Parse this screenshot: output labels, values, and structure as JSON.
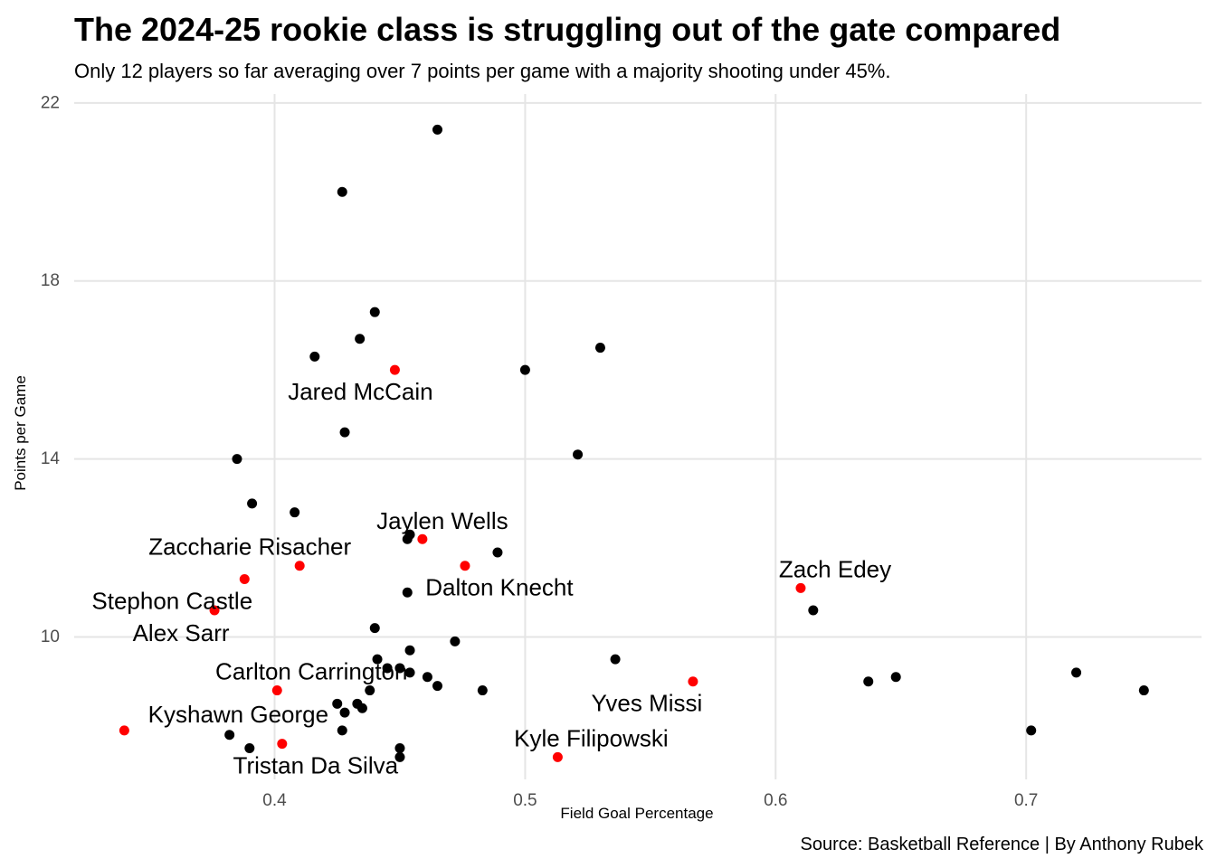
{
  "title": "The 2024-25 rookie class is struggling out of the gate compared",
  "subtitle": "Only 12 players so far averaging over 7 points per game with a majority shooting under 45%.",
  "caption": "Source: Basketball Reference | By Anthony Rubek",
  "colors": {
    "highlight": "#ff0000",
    "default": "#000000",
    "grid": "#e5e5e5",
    "background": "#ffffff"
  },
  "chart_data": {
    "type": "scatter",
    "xlabel": "Field Goal Percentage",
    "ylabel": "Points per Game",
    "xlim": [
      0.32,
      0.77
    ],
    "ylim": [
      6.8,
      22.2
    ],
    "x_ticks": [
      0.4,
      0.5,
      0.6,
      0.7
    ],
    "x_tick_labels": [
      "0.4",
      "0.5",
      "0.6",
      "0.7"
    ],
    "y_ticks": [
      10,
      14,
      18,
      22
    ],
    "y_tick_labels": [
      "10",
      "14",
      "18",
      "22"
    ],
    "grid": true,
    "legend": "none",
    "points": [
      {
        "x": 0.465,
        "y": 21.4
      },
      {
        "x": 0.427,
        "y": 20.0
      },
      {
        "x": 0.44,
        "y": 17.3
      },
      {
        "x": 0.434,
        "y": 16.7
      },
      {
        "x": 0.53,
        "y": 16.5
      },
      {
        "x": 0.416,
        "y": 16.3
      },
      {
        "x": 0.5,
        "y": 16.0
      },
      {
        "x": 0.428,
        "y": 14.6
      },
      {
        "x": 0.521,
        "y": 14.1
      },
      {
        "x": 0.385,
        "y": 14.0
      },
      {
        "x": 0.391,
        "y": 13.0
      },
      {
        "x": 0.408,
        "y": 12.8
      },
      {
        "x": 0.454,
        "y": 12.3
      },
      {
        "x": 0.453,
        "y": 12.2
      },
      {
        "x": 0.489,
        "y": 11.9
      },
      {
        "x": 0.453,
        "y": 11.0
      },
      {
        "x": 0.615,
        "y": 10.6
      },
      {
        "x": 0.44,
        "y": 10.2
      },
      {
        "x": 0.472,
        "y": 9.9
      },
      {
        "x": 0.454,
        "y": 9.7
      },
      {
        "x": 0.536,
        "y": 9.5
      },
      {
        "x": 0.441,
        "y": 9.5
      },
      {
        "x": 0.45,
        "y": 9.3
      },
      {
        "x": 0.445,
        "y": 9.3
      },
      {
        "x": 0.454,
        "y": 9.2
      },
      {
        "x": 0.72,
        "y": 9.2
      },
      {
        "x": 0.461,
        "y": 9.1
      },
      {
        "x": 0.648,
        "y": 9.1
      },
      {
        "x": 0.637,
        "y": 9.0
      },
      {
        "x": 0.465,
        "y": 8.9
      },
      {
        "x": 0.438,
        "y": 8.8
      },
      {
        "x": 0.483,
        "y": 8.8
      },
      {
        "x": 0.747,
        "y": 8.8
      },
      {
        "x": 0.425,
        "y": 8.5
      },
      {
        "x": 0.433,
        "y": 8.5
      },
      {
        "x": 0.435,
        "y": 8.4
      },
      {
        "x": 0.428,
        "y": 8.3
      },
      {
        "x": 0.427,
        "y": 7.9
      },
      {
        "x": 0.702,
        "y": 7.9
      },
      {
        "x": 0.382,
        "y": 7.8
      },
      {
        "x": 0.39,
        "y": 7.5
      },
      {
        "x": 0.45,
        "y": 7.5
      },
      {
        "x": 0.45,
        "y": 7.3
      },
      {
        "x": 0.448,
        "y": 16.0,
        "label": "Jared McCain",
        "highlight": true
      },
      {
        "x": 0.459,
        "y": 12.2,
        "label": "Jaylen Wells",
        "highlight": true
      },
      {
        "x": 0.41,
        "y": 11.6,
        "label": "Zaccharie Risacher",
        "highlight": true
      },
      {
        "x": 0.476,
        "y": 11.6,
        "label": "Dalton Knecht",
        "highlight": true
      },
      {
        "x": 0.388,
        "y": 11.3,
        "label": "Stephon Castle",
        "highlight": true
      },
      {
        "x": 0.61,
        "y": 11.1,
        "label": "Zach Edey",
        "highlight": true
      },
      {
        "x": 0.376,
        "y": 10.6,
        "label": "Alex Sarr",
        "highlight": true
      },
      {
        "x": 0.567,
        "y": 9.0,
        "label": "Yves Missi",
        "highlight": true
      },
      {
        "x": 0.401,
        "y": 8.8,
        "label": "Carlton Carrington",
        "highlight": true
      },
      {
        "x": 0.34,
        "y": 7.9,
        "label": "Kyshawn George",
        "highlight": true
      },
      {
        "x": 0.403,
        "y": 7.6,
        "label": "Tristan Da Silva",
        "highlight": true
      },
      {
        "x": 0.513,
        "y": 7.3,
        "label": "Kyle Filipowski",
        "highlight": true
      }
    ]
  }
}
